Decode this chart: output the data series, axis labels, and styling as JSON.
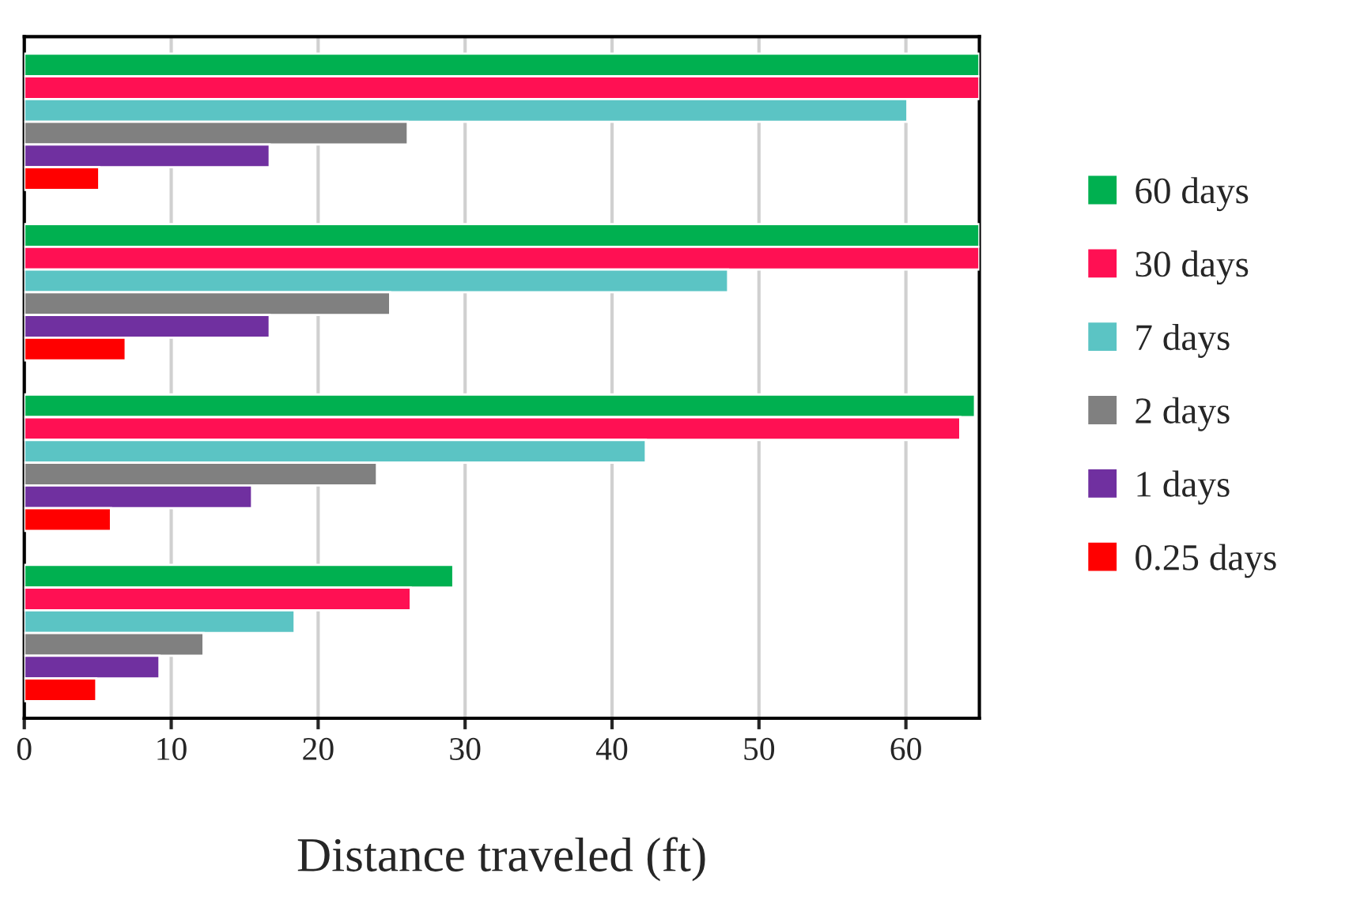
{
  "chart_data": {
    "type": "bar",
    "orientation": "horizontal",
    "xlabel": "Distance traveled (ft)",
    "categories": [
      null,
      null,
      null,
      null
    ],
    "series": [
      {
        "name": "60 days",
        "color": "#00b050",
        "values": [
          65,
          65,
          64.7,
          29.2
        ]
      },
      {
        "name": "30 days",
        "color": "#ff1053",
        "values": [
          65,
          65,
          63.7,
          26.3
        ]
      },
      {
        "name": "7 days",
        "color": "#5bc4c4",
        "values": [
          60.1,
          47.9,
          42.3,
          18.4
        ]
      },
      {
        "name": "2 days",
        "color": "#808080",
        "values": [
          26.1,
          24.9,
          24.0,
          12.2
        ]
      },
      {
        "name": "1 days",
        "color": "#7030a0",
        "values": [
          16.7,
          16.7,
          15.5,
          9.2
        ]
      },
      {
        "name": "0.25 days",
        "color": "#ff0000",
        "values": [
          5.1,
          6.9,
          5.9,
          4.9
        ]
      }
    ],
    "xlim": [
      0,
      65
    ],
    "xticks": [
      0,
      10,
      20,
      30,
      40,
      50,
      60
    ],
    "grid": "x",
    "legend": "right",
    "tick_labels": "x"
  }
}
